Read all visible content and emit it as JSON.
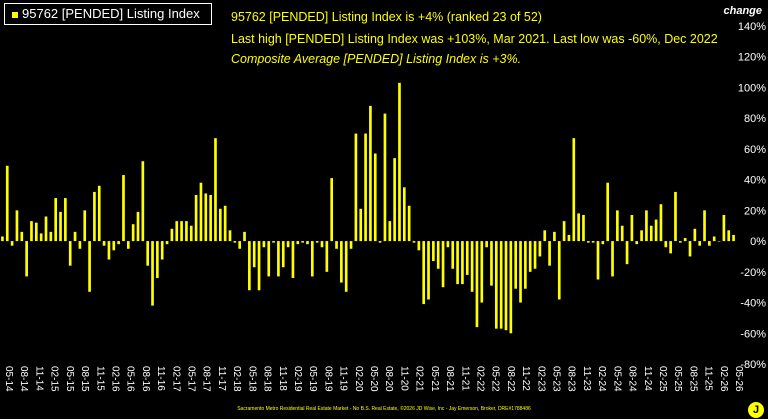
{
  "chart_data": {
    "type": "bar",
    "legend": "95762 [PENDED] Listing Index",
    "annotations": [
      "95762 [PENDED] Listing Index is +4% (ranked 23 of 52)",
      "Last high [PENDED] Listing Index was +103%, Mar 2021. Last low was -60%, Dec 2022",
      "Composite Average [PENDED] Listing Index is +3%."
    ],
    "y_axis_title": "change",
    "ylim": [
      -80,
      140
    ],
    "yticks": [
      "140%",
      "120%",
      "100%",
      "80%",
      "60%",
      "40%",
      "20%",
      "0%",
      "-20%",
      "-40%",
      "-60%",
      "-80%"
    ],
    "ytick_values": [
      140,
      120,
      100,
      80,
      60,
      40,
      20,
      0,
      -20,
      -40,
      -60,
      -80
    ],
    "xtick_labels": [
      "05-14",
      "08-14",
      "11-14",
      "02-15",
      "05-15",
      "08-15",
      "11-15",
      "02-16",
      "05-16",
      "08-16",
      "11-16",
      "02-17",
      "05-17",
      "08-17",
      "11-17",
      "02-18",
      "05-18",
      "08-18",
      "11-18",
      "02-19",
      "05-19",
      "08-19",
      "11-19",
      "02-20",
      "05-20",
      "08-20",
      "11-20",
      "02-21",
      "05-21",
      "08-21",
      "11-21",
      "02-22",
      "05-22",
      "08-22",
      "11-22",
      "02-23",
      "05-23",
      "08-23",
      "11-23",
      "02-24",
      "05-24",
      "08-24",
      "11-24",
      "02-25",
      "05-25",
      "08-25",
      "11-25",
      "02-26",
      "05-26"
    ],
    "grid": false,
    "bar_color": "#ffff00",
    "values": [
      3,
      49,
      -3,
      20,
      6,
      -23,
      13,
      12,
      5,
      16,
      6,
      28,
      19,
      28,
      -16,
      6,
      -5,
      20,
      -33,
      32,
      36,
      -3,
      -12,
      -6,
      -2,
      43,
      -5,
      11,
      19,
      52,
      -16,
      -42,
      -24,
      -12,
      -2,
      8,
      13,
      13,
      13,
      10,
      30,
      38,
      31,
      30,
      67,
      21,
      23,
      7,
      -1,
      -5,
      6,
      -32,
      -17,
      -32,
      -4,
      -23,
      -1,
      -23,
      -17,
      -4,
      -24,
      -2,
      -1,
      -2,
      -23,
      -1,
      -4,
      -20,
      41,
      -5,
      -27,
      -33,
      -5,
      70,
      21,
      70,
      88,
      57,
      -1,
      83,
      13,
      54,
      103,
      35,
      23,
      -1,
      -6,
      -41,
      -38,
      -13,
      -18,
      -30,
      -4,
      -18,
      -28,
      -28,
      -22,
      -33,
      -56,
      -40,
      -4,
      -29,
      -57,
      -57,
      -58,
      -60,
      -31,
      -40,
      -31,
      -20,
      -18,
      -10,
      7,
      -16,
      6,
      -38,
      13,
      4,
      67,
      18,
      17,
      -1,
      -1,
      -25,
      -2,
      38,
      -23,
      20,
      10,
      -15,
      17,
      -2,
      7,
      20,
      10,
      14,
      24,
      -4,
      -8,
      32,
      -1,
      2,
      -10,
      8,
      -3,
      20,
      -3,
      3,
      0,
      17,
      7,
      4
    ]
  },
  "footer_text": "Sacramento Metro Residential Real Estate Market - No B.S. Real Estate, ©2026 JD Wise, Inc - Jay Emerson, Broker, DRE#1788486",
  "logo_glyph": "J",
  "logo_color": "#ffff00"
}
